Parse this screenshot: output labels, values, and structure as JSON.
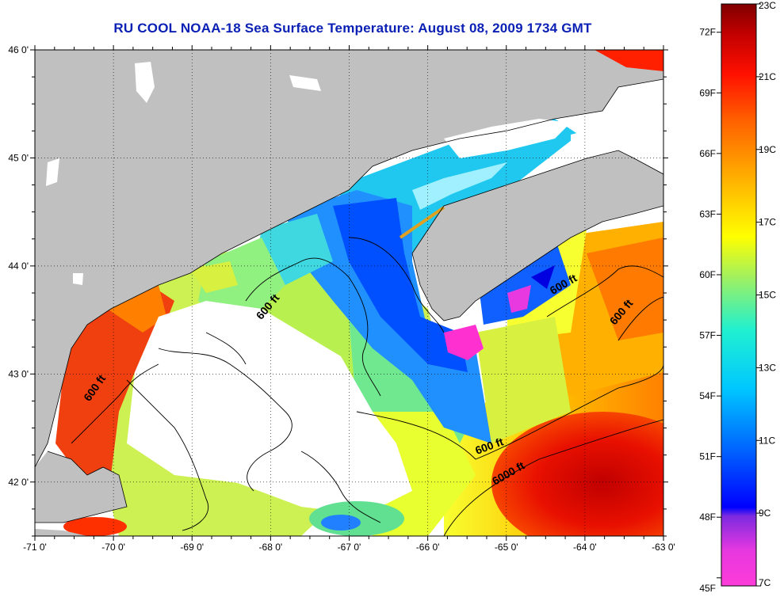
{
  "title": "RU COOL  NOAA-18  Sea Surface Temperature:  August 08, 2009 1734 GMT",
  "map": {
    "lon_range": [
      -71,
      -63
    ],
    "lat_range": [
      41.5,
      46
    ],
    "lon_ticks": [
      "-71 0'",
      "-70 0'",
      "-69 0'",
      "-68 0'",
      "-67 0'",
      "-66 0'",
      "-65 0'",
      "-64 0'",
      "-63 0'"
    ],
    "lat_ticks": [
      "46 0'",
      "45 0'",
      "44 0'",
      "43 0'",
      "42 0'"
    ],
    "grid": true,
    "contour_labels": [
      {
        "text": "600 ft",
        "lon": -68.0,
        "lat": 43.6
      },
      {
        "text": "600 ft",
        "lon": -70.2,
        "lat": 42.85
      },
      {
        "text": "600 ft",
        "lon": -64.25,
        "lat": 43.8
      },
      {
        "text": "600 ft",
        "lon": -63.5,
        "lat": 43.55
      },
      {
        "text": "600 ft",
        "lon": -65.2,
        "lat": 42.3
      },
      {
        "text": "6000 ft",
        "lon": -64.95,
        "lat": 42.05
      }
    ]
  },
  "colorbar": {
    "celsius_labels": [
      "23C",
      "21C",
      "19C",
      "17C",
      "15C",
      "13C",
      "11C",
      "9C",
      "7C"
    ],
    "fahrenheit_labels": [
      "72F",
      "69F",
      "66F",
      "63F",
      "60F",
      "57F",
      "54F",
      "51F",
      "48F",
      "45F"
    ],
    "colors": [
      "#fc3cd8",
      "#7c2be0",
      "#0000ff",
      "#0080ff",
      "#00d4ff",
      "#2cf0c8",
      "#a0f050",
      "#ffff00",
      "#ffb000",
      "#ff6000",
      "#ff1000",
      "#c00000",
      "#800000"
    ]
  },
  "colors": {
    "land": "#c0c0c0",
    "cloud": "#ffffff",
    "title": "#0a1fb4"
  }
}
